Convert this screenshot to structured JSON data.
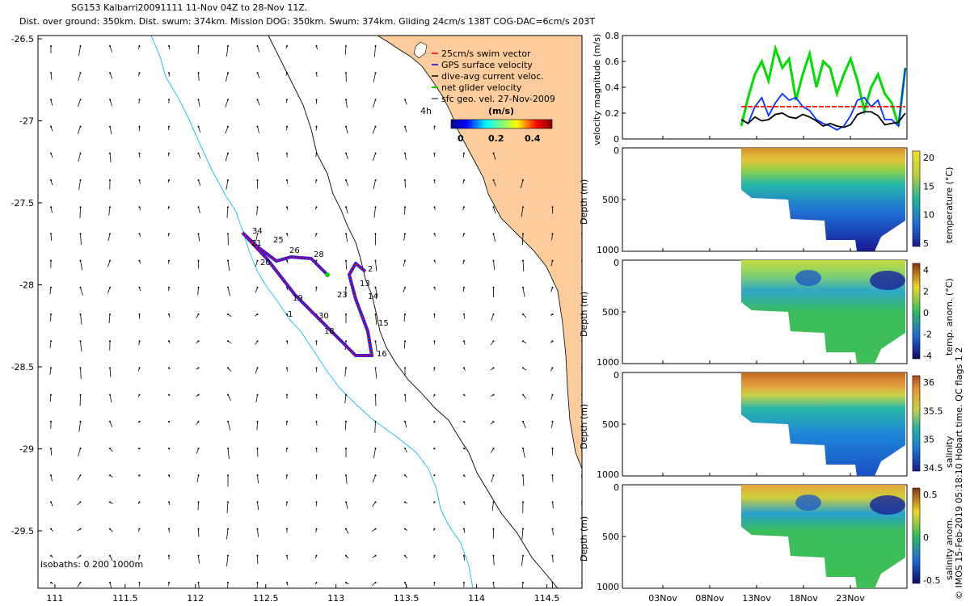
{
  "header": {
    "title": "SG153 Kalbarri20091111 11-Nov 04Z to 28-Nov 11Z.",
    "subtitle": "Dist. over ground: 350km. Dist. swum: 374km. Mission DOG: 350km. Swum: 374km. Gliding 24cm/s 138T COG-DAC=6cm/s 203T"
  },
  "colors": {
    "land": "#fdcc9d",
    "isobath": "#22c4f0",
    "coast": "#000000",
    "track_red": "#ff0000",
    "track_blue": "#1a1aff",
    "track_green": "#00cc00"
  },
  "map": {
    "legend": [
      {
        "label": "25cm/s swim vector",
        "color": "#ff0000"
      },
      {
        "label": "GPS surface velocity",
        "color": "#0000ff"
      },
      {
        "label": "dive-avg current veloc.",
        "color": "#000000"
      },
      {
        "label": "net glider velocity",
        "color": "#00cc00"
      },
      {
        "label": "sfc geo. vel. 27-Nov-2009",
        "color": "#000000"
      }
    ],
    "marker_4h": "4h",
    "colorbar_title": "(m/s)",
    "colorbar_ticks": [
      "0",
      "0.2",
      "0.4"
    ],
    "isobaths_label": "isobaths: 0   200  1000m",
    "track_labels": [
      "34",
      "21",
      "25",
      "26",
      "28",
      "20",
      "2",
      "13",
      "23",
      "14",
      "19",
      "1",
      "30",
      "18",
      "15",
      "16"
    ]
  },
  "panels": {
    "velocity_ylabel": "velocity magnitude (m/s)",
    "depth_label": "Depth (m)",
    "colorbar_labels": [
      "temperature (°C)",
      "temp. anom. (°C)",
      "salinity",
      "salinity anom."
    ],
    "colorbar_ticks": [
      [
        "20",
        "15",
        "10",
        "5"
      ],
      [
        "4",
        "2",
        "0",
        "-2",
        "-4"
      ],
      [
        "36",
        "35.5",
        "35",
        "34.5"
      ],
      [
        "0.5",
        "0",
        "-0.5"
      ]
    ],
    "footer_credit": "© IMOS 15-Feb-2019 05:18:10 Hobart time. QC flags 1 2"
  },
  "chart_data": [
    {
      "type": "scatter",
      "xlabel": "",
      "ylabel": "",
      "x_ticks": [
        "111",
        "111.5",
        "112",
        "112.5",
        "113",
        "113.5",
        "114",
        "114.5"
      ],
      "y_ticks": [
        "-26.5",
        "-27",
        "-27.5",
        "-28",
        "-28.5",
        "-29",
        "-29.5"
      ],
      "xlim": [
        110.88,
        114.75
      ],
      "ylim": [
        -29.85,
        -26.48
      ],
      "track": {
        "lon": [
          112.3,
          112.36,
          112.45,
          112.55,
          112.62,
          112.7,
          112.78,
          112.84,
          112.9,
          112.95
        ],
        "lat": [
          -27.66,
          -27.72,
          -27.77,
          -27.79,
          -27.8,
          -27.79,
          -27.79,
          -27.8,
          -27.85,
          -27.92
        ]
      }
    },
    {
      "type": "line",
      "xlabel": "",
      "ylabel": "velocity magnitude (m/s)",
      "ylim": [
        0,
        0.8
      ],
      "y_ticks": [
        "0",
        "0.2",
        "0.4",
        "0.6",
        "0.8"
      ],
      "x_ticks": [
        "03Nov",
        "08Nov",
        "13Nov",
        "18Nov",
        "23Nov"
      ],
      "series": [
        {
          "color": "#00dd00",
          "values": [
            0.1,
            0.32,
            0.5,
            0.6,
            0.45,
            0.7,
            0.55,
            0.62,
            0.3,
            0.5,
            0.66,
            0.4,
            0.6,
            0.55,
            0.35,
            0.5,
            0.62,
            0.45,
            0.22,
            0.4,
            0.5,
            0.35,
            0.28,
            0.1,
            0.55
          ]
        },
        {
          "color": "#0033ff",
          "values": [
            0.15,
            0.12,
            0.25,
            0.32,
            0.18,
            0.28,
            0.35,
            0.3,
            0.32,
            0.25,
            0.22,
            0.15,
            0.12,
            0.1,
            0.07,
            0.1,
            0.18,
            0.3,
            0.32,
            0.25,
            0.3,
            0.15,
            0.15,
            0.1,
            0.55
          ]
        },
        {
          "color": "#000000",
          "values": [
            0.15,
            0.12,
            0.17,
            0.14,
            0.15,
            0.19,
            0.2,
            0.17,
            0.16,
            0.19,
            0.17,
            0.14,
            0.1,
            0.12,
            0.1,
            0.09,
            0.11,
            0.19,
            0.21,
            0.21,
            0.18,
            0.11,
            0.12,
            0.13,
            0.2
          ]
        },
        {
          "color": "#ff0000",
          "values": [
            0.25,
            0.25,
            0.25,
            0.25,
            0.25,
            0.25,
            0.25,
            0.25,
            0.25,
            0.25,
            0.25,
            0.25,
            0.25,
            0.25,
            0.25,
            0.25,
            0.25,
            0.25,
            0.25,
            0.25,
            0.25,
            0.25,
            0.25,
            0.25,
            0.25
          ]
        }
      ]
    }
  ]
}
